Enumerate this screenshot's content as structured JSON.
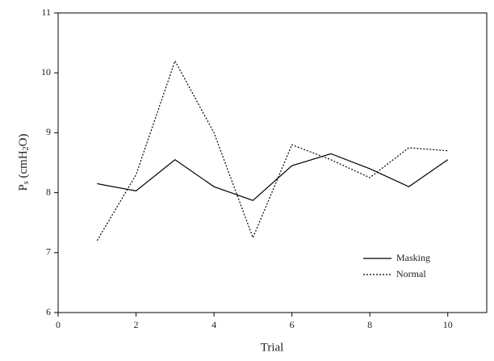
{
  "chart_data": {
    "type": "line",
    "xlabel": "Trial",
    "ylabel": [
      "P",
      "s",
      " (cmH",
      "2",
      "O)"
    ],
    "x": [
      1,
      2,
      3,
      4,
      5,
      6,
      7,
      8,
      9,
      10
    ],
    "series": [
      {
        "name": "Masking",
        "color": "#000000",
        "dash": "solid",
        "values": [
          8.15,
          8.03,
          8.55,
          8.1,
          7.87,
          8.45,
          8.65,
          8.4,
          8.1,
          8.55
        ]
      },
      {
        "name": "Normal",
        "color": "#000000",
        "dash": "dotted",
        "values": [
          7.2,
          8.3,
          10.2,
          9.0,
          7.25,
          8.8,
          8.55,
          8.25,
          8.75,
          8.7
        ]
      }
    ],
    "xlim": [
      0,
      11
    ],
    "xticks": [
      0,
      2,
      4,
      6,
      8,
      10
    ],
    "ylim": [
      6,
      11
    ],
    "yticks": [
      6,
      7,
      8,
      9,
      10,
      11
    ],
    "legend": "lower-right"
  }
}
